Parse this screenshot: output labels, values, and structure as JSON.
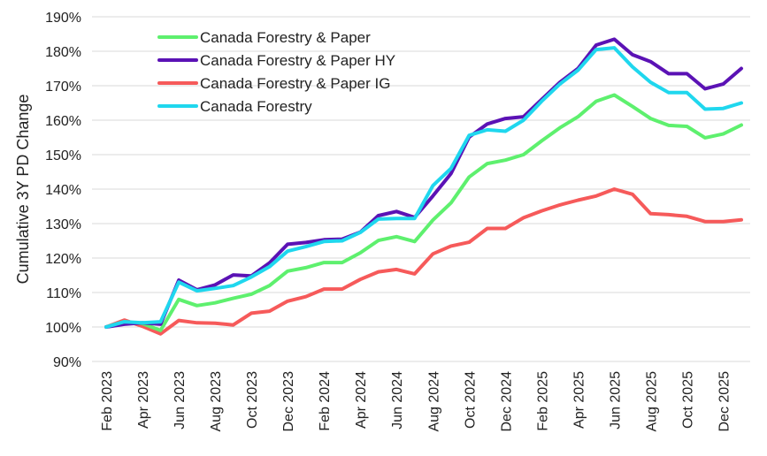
{
  "chart_data": {
    "type": "line",
    "ylabel": "Cumulative 3Y PD Change",
    "ylim": [
      90,
      190
    ],
    "y_ticks": [
      "90%",
      "100%",
      "110%",
      "120%",
      "130%",
      "140%",
      "150%",
      "160%",
      "170%",
      "180%",
      "190%"
    ],
    "x_tick_labels": [
      "Feb 2023",
      "Apr 2023",
      "Jun 2023",
      "Aug 2023",
      "Oct 2023",
      "Dec 2023",
      "Feb 2024",
      "Apr 2024",
      "Jun 2024",
      "Aug 2024",
      "Oct 2024",
      "Dec 2024",
      "Feb 2025",
      "Apr 2025",
      "Jun 2025",
      "Aug 2025",
      "Oct 2025",
      "Dec 2025"
    ],
    "x": [
      "Feb 2023",
      "Mar 2023",
      "Apr 2023",
      "May 2023",
      "Jun 2023",
      "Jul 2023",
      "Aug 2023",
      "Sep 2023",
      "Oct 2023",
      "Nov 2023",
      "Dec 2023",
      "Jan 2024",
      "Feb 2024",
      "Mar 2024",
      "Apr 2024",
      "May 2024",
      "Jun 2024",
      "Jul 2024",
      "Aug 2024",
      "Sep 2024",
      "Oct 2024",
      "Nov 2024",
      "Dec 2024",
      "Jan 2025",
      "Feb 2025",
      "Mar 2025",
      "Apr 2025",
      "May 2025",
      "Jun 2025",
      "Jul 2025",
      "Aug 2025",
      "Sep 2025",
      "Oct 2025",
      "Nov 2025",
      "Dec 2025",
      "Jan 2026"
    ],
    "legend_position": "top-left",
    "grid": "horizontal",
    "series": [
      {
        "name": "Canada Forestry & Paper",
        "color": "#5ef06e",
        "values": [
          100,
          101.5,
          101,
          99,
          108,
          106.2,
          107,
          108.3,
          109.5,
          112,
          116.2,
          117.2,
          118.7,
          118.7,
          121.5,
          125.1,
          126.2,
          124.8,
          131,
          136,
          143.5,
          147.4,
          148.4,
          150,
          154,
          157.8,
          161,
          165.5,
          167.3,
          164,
          160.5,
          158.5,
          158.2,
          154.9,
          156,
          158.6
        ]
      },
      {
        "name": "Canada Forestry & Paper HY",
        "color": "#5b12b5",
        "values": [
          100,
          100.8,
          101.2,
          100.8,
          113.6,
          110.8,
          112.2,
          115.1,
          114.8,
          118.6,
          124,
          124.5,
          125.3,
          125.5,
          127.5,
          132.3,
          133.5,
          131.8,
          138,
          144.5,
          155.1,
          158.9,
          160.5,
          161,
          166,
          171,
          175,
          181.8,
          183.5,
          179,
          177,
          173.5,
          173.5,
          169.1,
          170.5,
          175
        ]
      },
      {
        "name": "Canada Forestry & Paper IG",
        "color": "#f65a5a",
        "values": [
          100,
          102,
          100.2,
          98,
          101.9,
          101.2,
          101.1,
          100.6,
          104,
          104.6,
          107.5,
          108.8,
          111,
          111,
          113.8,
          116,
          116.7,
          115.4,
          121.2,
          123.5,
          124.6,
          128.6,
          128.6,
          131.7,
          133.7,
          135.4,
          136.8,
          138,
          140,
          138.5,
          132.9,
          132.6,
          132.1,
          130.6,
          130.6,
          131.1
        ]
      },
      {
        "name": "Canada Forestry",
        "color": "#1fd7ee",
        "values": [
          100,
          101.5,
          101.2,
          101.5,
          113,
          110.5,
          111.2,
          112,
          114.5,
          117.5,
          122,
          123.3,
          124.8,
          125,
          127.4,
          131.3,
          131.5,
          131.5,
          141,
          146,
          155.6,
          157.2,
          156.8,
          160,
          165.5,
          170.5,
          174.5,
          180.5,
          181,
          175.5,
          171,
          168,
          168,
          163.2,
          163.4,
          165
        ]
      }
    ]
  }
}
